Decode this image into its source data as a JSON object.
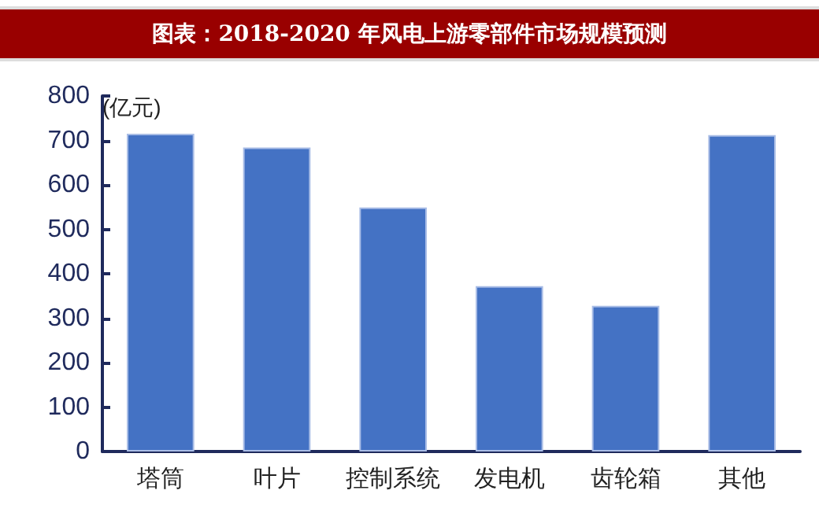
{
  "chart_data": {
    "type": "bar",
    "title": "图表：2018-2020 年风电上游零部件市场规模预测",
    "ylabel": "(亿元)",
    "categories": [
      "塔筒",
      "叶片",
      "控制系统",
      "发电机",
      "齿轮箱",
      "其他"
    ],
    "values": [
      715,
      684,
      549,
      372,
      328,
      712
    ],
    "color": "#4472c4",
    "ylim": [
      0,
      800
    ],
    "yticks": [
      0,
      100,
      200,
      300,
      400,
      500,
      600,
      700,
      800
    ],
    "grid": false
  }
}
